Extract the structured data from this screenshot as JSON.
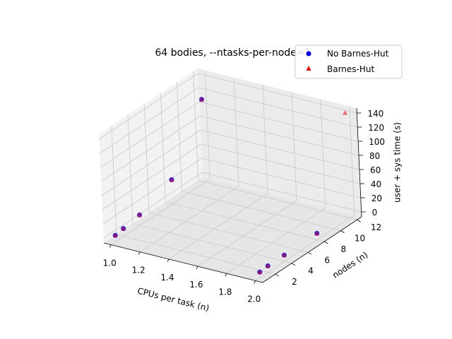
{
  "chart_data": {
    "type": "scatter",
    "projection": "3d",
    "title": "64 bodies, --ntasks-per-node=1",
    "xlabel": "CPUs per task (n)",
    "ylabel": "nodes (n)",
    "zlabel": "user + sys time (s)",
    "xlim": [
      0.95,
      2.05
    ],
    "ylim": [
      0.45,
      12.55
    ],
    "zlim": [
      -7,
      147
    ],
    "x_ticks": [
      "1.0",
      "1.2",
      "1.4",
      "1.6",
      "1.8",
      "2.0"
    ],
    "y_ticks": [
      "2",
      "4",
      "6",
      "8",
      "10",
      "12"
    ],
    "z_ticks": [
      "0",
      "20",
      "40",
      "60",
      "80",
      "100",
      "120",
      "140"
    ],
    "grid": true,
    "legend_position": "top-right",
    "series": [
      {
        "name": "No Barnes-Hut",
        "marker": "circle",
        "color": "#0000ff",
        "points": [
          {
            "x": 1,
            "y": 1,
            "z": 2
          },
          {
            "x": 1,
            "y": 2,
            "z": 4
          },
          {
            "x": 1,
            "y": 4,
            "z": 8
          },
          {
            "x": 1,
            "y": 8,
            "z": 27
          },
          {
            "x": 1,
            "y": 12,
            "z": 110
          },
          {
            "x": 2,
            "y": 1,
            "z": 1
          },
          {
            "x": 2,
            "y": 2,
            "z": 2
          },
          {
            "x": 2,
            "y": 4,
            "z": 2
          },
          {
            "x": 2,
            "y": 8,
            "z": 2
          }
        ]
      },
      {
        "name": "Barnes-Hut",
        "marker": "triangle",
        "color": "#ff0000",
        "points": [
          {
            "x": 1,
            "y": 1,
            "z": 2
          },
          {
            "x": 1,
            "y": 2,
            "z": 4
          },
          {
            "x": 1,
            "y": 4,
            "z": 8
          },
          {
            "x": 1,
            "y": 8,
            "z": 27
          },
          {
            "x": 1,
            "y": 12,
            "z": 110
          },
          {
            "x": 2,
            "y": 1,
            "z": 1
          },
          {
            "x": 2,
            "y": 2,
            "z": 2
          },
          {
            "x": 2,
            "y": 4,
            "z": 2
          },
          {
            "x": 2,
            "y": 8,
            "z": 2
          },
          {
            "x": 2,
            "y": 12,
            "z": 142
          }
        ]
      }
    ]
  }
}
